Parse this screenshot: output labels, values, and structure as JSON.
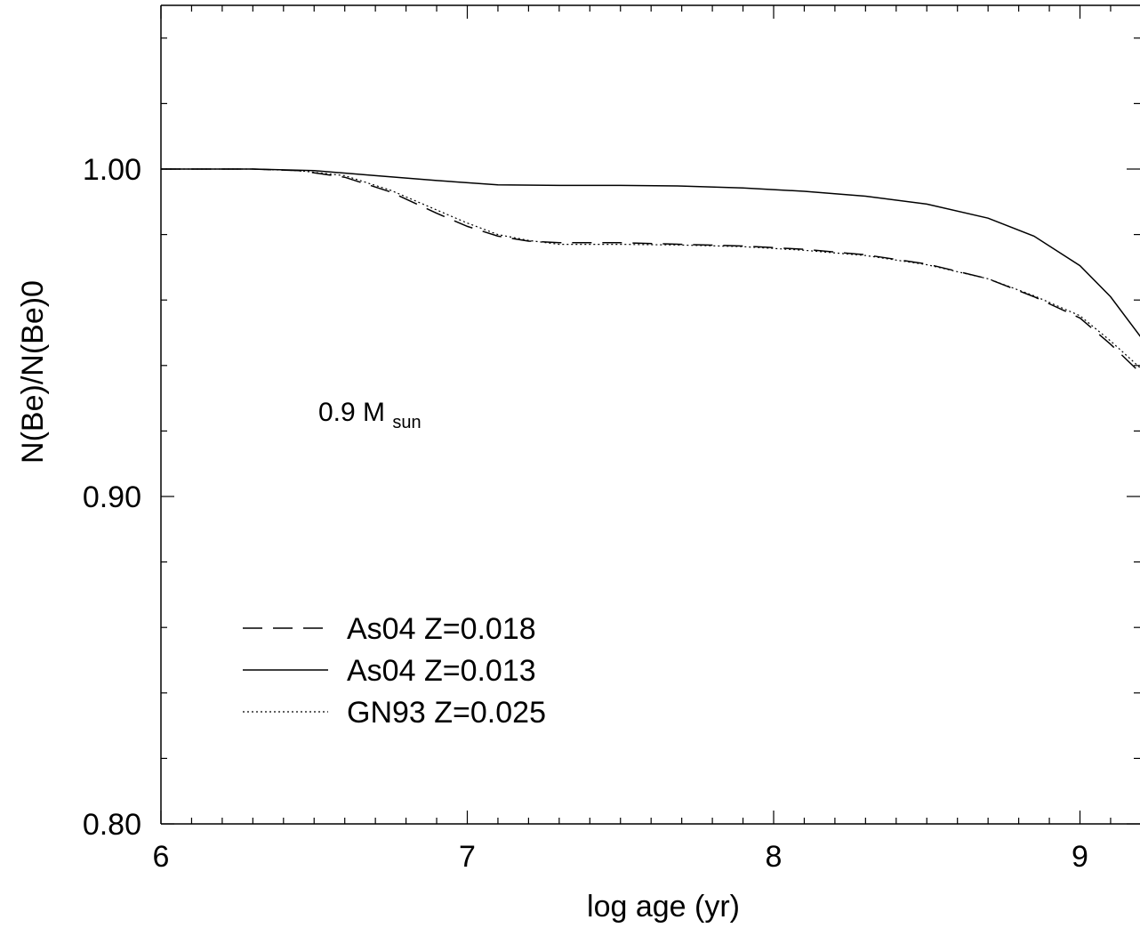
{
  "chart_data": {
    "type": "line",
    "xlabel": "log age (yr)",
    "ylabel": "N(Be)/N(Be)0",
    "xlim": [
      6,
      9.2
    ],
    "ylim": [
      0.8,
      1.05
    ],
    "x_ticks": [
      6,
      7,
      8,
      9
    ],
    "x_tick_labels": [
      "6",
      "7",
      "8",
      "9"
    ],
    "y_ticks": [
      0.8,
      0.9,
      1.0
    ],
    "y_tick_labels": [
      "0.80",
      "0.90",
      "1.00"
    ],
    "grid": false,
    "legend_position": "bottom-left",
    "annotation": {
      "text": "0.9 M",
      "subscript": "sun"
    },
    "series": [
      {
        "name": "As04 Z=0.018",
        "style": "dashed",
        "x": [
          6.0,
          6.3,
          6.45,
          6.6,
          6.75,
          6.9,
          7.0,
          7.1,
          7.2,
          7.3,
          7.5,
          7.7,
          7.9,
          8.1,
          8.3,
          8.5,
          8.7,
          8.85,
          9.0,
          9.1,
          9.2
        ],
        "y": [
          1.0,
          1.0,
          0.9995,
          0.9975,
          0.993,
          0.9865,
          0.9825,
          0.9795,
          0.978,
          0.9775,
          0.9775,
          0.977,
          0.9765,
          0.9755,
          0.9738,
          0.971,
          0.9665,
          0.961,
          0.9545,
          0.9465,
          0.9375
        ]
      },
      {
        "name": "As04 Z=0.013",
        "style": "solid",
        "x": [
          6.0,
          6.3,
          6.5,
          6.7,
          6.9,
          7.1,
          7.3,
          7.5,
          7.7,
          7.9,
          8.1,
          8.3,
          8.5,
          8.7,
          8.85,
          9.0,
          9.1,
          9.2
        ],
        "y": [
          1.0,
          1.0,
          0.9995,
          0.998,
          0.9965,
          0.9952,
          0.995,
          0.995,
          0.9948,
          0.9942,
          0.9932,
          0.9917,
          0.9893,
          0.985,
          0.9795,
          0.9705,
          0.961,
          0.9485
        ]
      },
      {
        "name": "GN93 Z=0.025",
        "style": "dotted",
        "x": [
          6.0,
          6.3,
          6.45,
          6.6,
          6.75,
          6.9,
          7.0,
          7.1,
          7.2,
          7.3,
          7.5,
          7.7,
          7.9,
          8.1,
          8.3,
          8.5,
          8.7,
          8.85,
          9.0,
          9.1,
          9.2
        ],
        "y": [
          1.0,
          1.0,
          0.9995,
          0.998,
          0.9935,
          0.9875,
          0.9835,
          0.98,
          0.9782,
          0.977,
          0.977,
          0.9768,
          0.9763,
          0.9752,
          0.9736,
          0.9708,
          0.9665,
          0.9613,
          0.9552,
          0.9475,
          0.939
        ]
      }
    ]
  }
}
